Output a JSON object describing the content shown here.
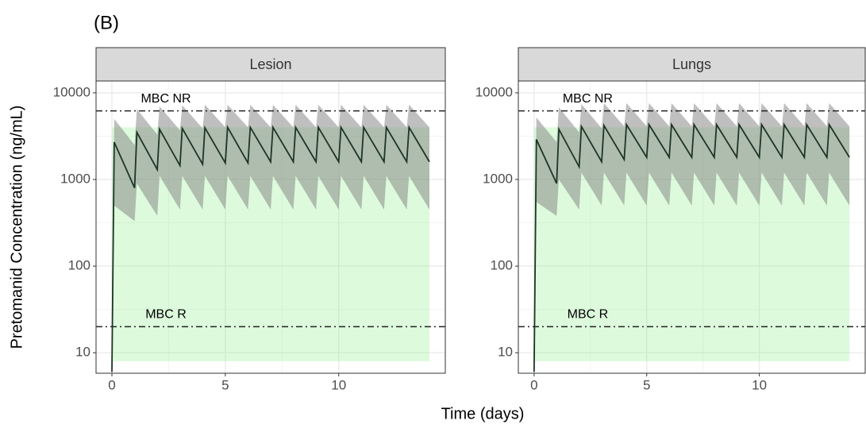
{
  "figure": {
    "label": "(B)",
    "x_label": "Time (days)",
    "y_label": "Pretomanid Concentration (ng/mL)"
  },
  "chart_data": [
    {
      "type": "line",
      "title": "Lesion",
      "yscale": "log",
      "grid": true,
      "xlim": [
        -0.7,
        14.7
      ],
      "xticks": [
        0,
        5,
        10
      ],
      "ylim": [
        5.8,
        13700
      ],
      "yticks": [
        10,
        100,
        1000,
        10000
      ],
      "color": "#1e3526",
      "band_color": "#7f7f7f",
      "x": [
        0,
        0.1,
        1,
        1.1,
        2,
        2.1,
        3,
        3.1,
        4,
        4.1,
        5,
        5.1,
        6,
        6.1,
        7,
        7.1,
        8,
        8.1,
        9,
        9.1,
        10,
        10.1,
        11,
        11.1,
        12,
        12.1,
        13,
        13.1,
        14
      ],
      "values": [
        6,
        2700,
        800,
        3500,
        1300,
        3800,
        1450,
        3900,
        1500,
        3950,
        1550,
        4000,
        1550,
        4000,
        1600,
        4000,
        1600,
        4000,
        1600,
        4000,
        1600,
        4000,
        1600,
        4000,
        1600,
        4000,
        1600,
        4000,
        1600
      ],
      "upper": [
        6,
        5000,
        2500,
        6500,
        3300,
        7000,
        3700,
        7200,
        3900,
        7300,
        4000,
        7300,
        4000,
        7300,
        4000,
        7300,
        4000,
        7300,
        4000,
        7300,
        4000,
        7300,
        4000,
        7300,
        4000,
        7300,
        4000,
        7300,
        4000
      ],
      "lower": [
        6,
        500,
        330,
        900,
        380,
        1100,
        450,
        1100,
        450,
        1100,
        450,
        1100,
        450,
        1100,
        450,
        1100,
        450,
        1100,
        450,
        1100,
        450,
        1100,
        450,
        1100,
        450,
        1100,
        450,
        1100,
        450
      ],
      "target": {
        "color": "#90ee90",
        "xlim": [
          0,
          14
        ],
        "ylim": [
          8,
          4000
        ]
      },
      "reference_lines": [
        {
          "label": "MBC NR",
          "value": 6200
        },
        {
          "label": "MBC R",
          "value": 20
        }
      ]
    },
    {
      "type": "line",
      "title": "Lungs",
      "yscale": "log",
      "grid": true,
      "xlim": [
        -0.7,
        14.7
      ],
      "xticks": [
        0,
        5,
        10
      ],
      "ylim": [
        5.8,
        13700
      ],
      "yticks": [
        10,
        100,
        1000,
        10000
      ],
      "color": "#1e3526",
      "band_color": "#7f7f7f",
      "x": [
        0,
        0.1,
        1,
        1.1,
        2,
        2.1,
        3,
        3.1,
        4,
        4.1,
        5,
        5.1,
        6,
        6.1,
        7,
        7.1,
        8,
        8.1,
        9,
        9.1,
        10,
        10.1,
        11,
        11.1,
        12,
        12.1,
        13,
        13.1,
        14
      ],
      "values": [
        6,
        2900,
        900,
        3800,
        1400,
        4100,
        1600,
        4200,
        1700,
        4300,
        1800,
        4300,
        1800,
        4300,
        1800,
        4300,
        1800,
        4300,
        1800,
        4300,
        1800,
        4300,
        1800,
        4300,
        1800,
        4300,
        1800,
        4300,
        1800
      ],
      "upper": [
        6,
        5200,
        2700,
        6800,
        3500,
        7400,
        3900,
        7600,
        4100,
        7600,
        4100,
        7600,
        4100,
        7600,
        4100,
        7600,
        4100,
        7600,
        4100,
        7600,
        4100,
        7600,
        4100,
        7600,
        4100,
        7600,
        4100,
        7600,
        4100
      ],
      "lower": [
        6,
        550,
        380,
        1000,
        450,
        1200,
        500,
        1200,
        500,
        1200,
        500,
        1200,
        500,
        1200,
        500,
        1200,
        500,
        1200,
        500,
        1200,
        500,
        1200,
        500,
        1200,
        500,
        1200,
        500,
        1200,
        500
      ],
      "target": {
        "color": "#90ee90",
        "xlim": [
          0,
          14
        ],
        "ylim": [
          8,
          4000
        ]
      },
      "reference_lines": [
        {
          "label": "MBC NR",
          "value": 6200
        },
        {
          "label": "MBC R",
          "value": 20
        }
      ]
    }
  ]
}
